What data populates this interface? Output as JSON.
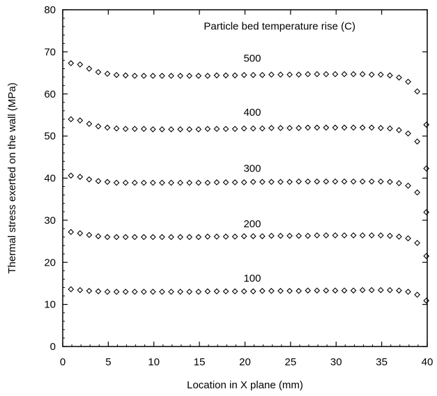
{
  "chart_data": {
    "type": "scatter",
    "title": "",
    "xlabel": "Location in X plane (mm)",
    "ylabel": "Thermal stress exerted on the wall (MPa)",
    "xlim": [
      0,
      40
    ],
    "ylim": [
      0,
      80
    ],
    "xticks": [
      "0",
      "5",
      "10",
      "15",
      "20",
      "25",
      "30",
      "35",
      "40"
    ],
    "yticks": [
      "0",
      "10",
      "20",
      "30",
      "40",
      "50",
      "60",
      "70",
      "80"
    ],
    "legend_title": "Particle bed temperature rise (C)",
    "marker": "diamond",
    "grid": false,
    "series": [
      {
        "name": "100",
        "points": [
          [
            0.9,
            13.6
          ],
          [
            1.9,
            13.4
          ],
          [
            2.9,
            13.2
          ],
          [
            3.9,
            13.1
          ],
          [
            4.9,
            13.0
          ],
          [
            5.9,
            13.0
          ],
          [
            6.9,
            13.0
          ],
          [
            7.9,
            13.0
          ],
          [
            8.9,
            13.0
          ],
          [
            9.9,
            13.0
          ],
          [
            10.9,
            13.0
          ],
          [
            11.9,
            13.0
          ],
          [
            12.9,
            13.0
          ],
          [
            13.9,
            13.0
          ],
          [
            14.9,
            13.0
          ],
          [
            15.9,
            13.1
          ],
          [
            16.9,
            13.1
          ],
          [
            17.9,
            13.1
          ],
          [
            18.9,
            13.1
          ],
          [
            19.9,
            13.1
          ],
          [
            20.9,
            13.1
          ],
          [
            21.9,
            13.2
          ],
          [
            22.9,
            13.2
          ],
          [
            23.9,
            13.2
          ],
          [
            24.9,
            13.2
          ],
          [
            25.9,
            13.2
          ],
          [
            26.9,
            13.3
          ],
          [
            27.9,
            13.3
          ],
          [
            28.9,
            13.3
          ],
          [
            29.9,
            13.3
          ],
          [
            30.9,
            13.3
          ],
          [
            31.9,
            13.3
          ],
          [
            32.9,
            13.4
          ],
          [
            33.9,
            13.4
          ],
          [
            34.9,
            13.4
          ],
          [
            35.9,
            13.4
          ],
          [
            36.9,
            13.3
          ],
          [
            37.9,
            13.0
          ],
          [
            38.9,
            12.3
          ],
          [
            39.9,
            10.9
          ]
        ]
      },
      {
        "name": "200",
        "points": [
          [
            0.9,
            27.2
          ],
          [
            1.9,
            26.9
          ],
          [
            2.9,
            26.5
          ],
          [
            3.9,
            26.2
          ],
          [
            4.9,
            26.0
          ],
          [
            5.9,
            26.0
          ],
          [
            6.9,
            26.0
          ],
          [
            7.9,
            26.0
          ],
          [
            8.9,
            26.0
          ],
          [
            9.9,
            26.0
          ],
          [
            10.9,
            26.0
          ],
          [
            11.9,
            26.0
          ],
          [
            12.9,
            26.0
          ],
          [
            13.9,
            26.0
          ],
          [
            14.9,
            26.0
          ],
          [
            15.9,
            26.1
          ],
          [
            16.9,
            26.1
          ],
          [
            17.9,
            26.1
          ],
          [
            18.9,
            26.1
          ],
          [
            19.9,
            26.2
          ],
          [
            20.9,
            26.2
          ],
          [
            21.9,
            26.2
          ],
          [
            22.9,
            26.3
          ],
          [
            23.9,
            26.3
          ],
          [
            24.9,
            26.3
          ],
          [
            25.9,
            26.3
          ],
          [
            26.9,
            26.3
          ],
          [
            27.9,
            26.4
          ],
          [
            28.9,
            26.4
          ],
          [
            29.9,
            26.4
          ],
          [
            30.9,
            26.4
          ],
          [
            31.9,
            26.4
          ],
          [
            32.9,
            26.4
          ],
          [
            33.9,
            26.4
          ],
          [
            34.9,
            26.4
          ],
          [
            35.9,
            26.3
          ],
          [
            36.9,
            26.1
          ],
          [
            37.9,
            25.7
          ],
          [
            38.9,
            24.6
          ],
          [
            39.9,
            21.5
          ]
        ]
      },
      {
        "name": "300",
        "points": [
          [
            0.9,
            40.6
          ],
          [
            1.9,
            40.3
          ],
          [
            2.9,
            39.7
          ],
          [
            3.9,
            39.3
          ],
          [
            4.9,
            39.1
          ],
          [
            5.9,
            38.9
          ],
          [
            6.9,
            38.9
          ],
          [
            7.9,
            38.9
          ],
          [
            8.9,
            38.9
          ],
          [
            9.9,
            38.9
          ],
          [
            10.9,
            38.9
          ],
          [
            11.9,
            38.9
          ],
          [
            12.9,
            38.9
          ],
          [
            13.9,
            38.9
          ],
          [
            14.9,
            38.9
          ],
          [
            15.9,
            38.9
          ],
          [
            16.9,
            39.0
          ],
          [
            17.9,
            39.0
          ],
          [
            18.9,
            39.0
          ],
          [
            19.9,
            39.0
          ],
          [
            20.9,
            39.1
          ],
          [
            21.9,
            39.1
          ],
          [
            22.9,
            39.1
          ],
          [
            23.9,
            39.1
          ],
          [
            24.9,
            39.1
          ],
          [
            25.9,
            39.2
          ],
          [
            26.9,
            39.2
          ],
          [
            27.9,
            39.2
          ],
          [
            28.9,
            39.2
          ],
          [
            29.9,
            39.2
          ],
          [
            30.9,
            39.2
          ],
          [
            31.9,
            39.2
          ],
          [
            32.9,
            39.2
          ],
          [
            33.9,
            39.2
          ],
          [
            34.9,
            39.2
          ],
          [
            35.9,
            39.1
          ],
          [
            36.9,
            38.8
          ],
          [
            37.9,
            38.2
          ],
          [
            38.9,
            36.6
          ],
          [
            39.9,
            31.9
          ]
        ]
      },
      {
        "name": "400",
        "points": [
          [
            0.9,
            54.0
          ],
          [
            1.9,
            53.7
          ],
          [
            2.9,
            52.9
          ],
          [
            3.9,
            52.3
          ],
          [
            4.9,
            52.0
          ],
          [
            5.9,
            51.8
          ],
          [
            6.9,
            51.7
          ],
          [
            7.9,
            51.7
          ],
          [
            8.9,
            51.7
          ],
          [
            9.9,
            51.6
          ],
          [
            10.9,
            51.6
          ],
          [
            11.9,
            51.6
          ],
          [
            12.9,
            51.6
          ],
          [
            13.9,
            51.6
          ],
          [
            14.9,
            51.6
          ],
          [
            15.9,
            51.7
          ],
          [
            16.9,
            51.7
          ],
          [
            17.9,
            51.7
          ],
          [
            18.9,
            51.7
          ],
          [
            19.9,
            51.8
          ],
          [
            20.9,
            51.8
          ],
          [
            21.9,
            51.8
          ],
          [
            22.9,
            51.9
          ],
          [
            23.9,
            51.9
          ],
          [
            24.9,
            51.9
          ],
          [
            25.9,
            51.9
          ],
          [
            26.9,
            52.0
          ],
          [
            27.9,
            52.0
          ],
          [
            28.9,
            52.0
          ],
          [
            29.9,
            52.0
          ],
          [
            30.9,
            52.0
          ],
          [
            31.9,
            52.0
          ],
          [
            32.9,
            52.0
          ],
          [
            33.9,
            52.0
          ],
          [
            34.9,
            51.9
          ],
          [
            35.9,
            51.8
          ],
          [
            36.9,
            51.4
          ],
          [
            37.9,
            50.6
          ],
          [
            38.9,
            48.7
          ],
          [
            39.9,
            42.3
          ]
        ]
      },
      {
        "name": "500",
        "points": [
          [
            0.9,
            67.3
          ],
          [
            1.9,
            67.0
          ],
          [
            2.9,
            66.0
          ],
          [
            3.9,
            65.2
          ],
          [
            4.9,
            64.8
          ],
          [
            5.9,
            64.5
          ],
          [
            6.9,
            64.4
          ],
          [
            7.9,
            64.3
          ],
          [
            8.9,
            64.3
          ],
          [
            9.9,
            64.3
          ],
          [
            10.9,
            64.3
          ],
          [
            11.9,
            64.3
          ],
          [
            12.9,
            64.3
          ],
          [
            13.9,
            64.3
          ],
          [
            14.9,
            64.3
          ],
          [
            15.9,
            64.3
          ],
          [
            16.9,
            64.4
          ],
          [
            17.9,
            64.4
          ],
          [
            18.9,
            64.4
          ],
          [
            19.9,
            64.5
          ],
          [
            20.9,
            64.5
          ],
          [
            21.9,
            64.5
          ],
          [
            22.9,
            64.6
          ],
          [
            23.9,
            64.6
          ],
          [
            24.9,
            64.6
          ],
          [
            25.9,
            64.6
          ],
          [
            26.9,
            64.7
          ],
          [
            27.9,
            64.7
          ],
          [
            28.9,
            64.7
          ],
          [
            29.9,
            64.7
          ],
          [
            30.9,
            64.7
          ],
          [
            31.9,
            64.7
          ],
          [
            32.9,
            64.7
          ],
          [
            33.9,
            64.6
          ],
          [
            34.9,
            64.6
          ],
          [
            35.9,
            64.4
          ],
          [
            36.9,
            63.9
          ],
          [
            37.9,
            62.9
          ],
          [
            38.9,
            60.6
          ],
          [
            39.9,
            52.7
          ]
        ]
      }
    ],
    "series_label_positions": [
      {
        "name": "100",
        "x": 20.8,
        "y": 15.4
      },
      {
        "name": "200",
        "x": 20.8,
        "y": 28.3
      },
      {
        "name": "300",
        "x": 20.8,
        "y": 41.5
      },
      {
        "name": "400",
        "x": 20.8,
        "y": 54.8
      },
      {
        "name": "500",
        "x": 20.8,
        "y": 67.7
      }
    ],
    "legend_title_position": {
      "x": 23.8,
      "y": 75.3
    }
  }
}
